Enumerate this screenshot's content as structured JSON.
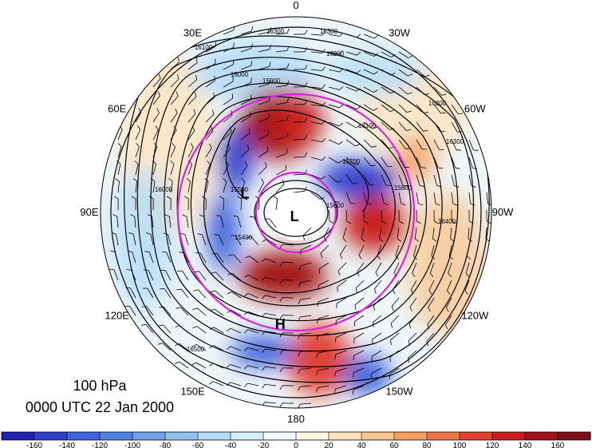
{
  "caption": {
    "level": "100 hPa",
    "time": "0000 UTC 22 Jan 2000"
  },
  "longitude_labels": [
    {
      "text": "0",
      "lon": 0
    },
    {
      "text": "30W",
      "lon": -30
    },
    {
      "text": "60W",
      "lon": -60
    },
    {
      "text": "90W",
      "lon": -90
    },
    {
      "text": "120W",
      "lon": -120
    },
    {
      "text": "150W",
      "lon": -150
    },
    {
      "text": "180",
      "lon": 180
    },
    {
      "text": "150E",
      "lon": 150
    },
    {
      "text": "120E",
      "lon": 120
    },
    {
      "text": "90E",
      "lon": 90
    },
    {
      "text": "60E",
      "lon": 60
    },
    {
      "text": "30E",
      "lon": 30
    }
  ],
  "pressure_centers": [
    {
      "text": "L",
      "lat": 88,
      "lon": 160
    },
    {
      "text": "L",
      "lat": 65,
      "lon": 70
    },
    {
      "text": "H",
      "lat": 38,
      "lon": 172
    }
  ],
  "contour_labels": [
    "16300",
    "16300",
    "16200",
    "16100",
    "16000",
    "15900",
    "16100",
    "15800",
    "16200",
    "16000",
    "15700",
    "15600",
    "15500",
    "15400",
    "16300",
    "16400",
    "16500"
  ],
  "colorbar": {
    "ticks": [
      -160,
      -140,
      -120,
      -100,
      -80,
      -60,
      -40,
      -20,
      0,
      20,
      40,
      60,
      80,
      100,
      120,
      140,
      160
    ],
    "colors": [
      "#1f1fb5",
      "#2f40cc",
      "#3c63dc",
      "#4f83e3",
      "#6ea3ea",
      "#8fc1f1",
      "#b3dcf7",
      "#d6f0fb",
      "#f2fbff",
      "#fff7df",
      "#fde3bd",
      "#f9c590",
      "#f4a163",
      "#ec7445",
      "#e04430",
      "#c9201f",
      "#a41219",
      "#7c0d14"
    ]
  },
  "colors": {
    "reference_circle": "#e020e0",
    "contour": "#000000"
  }
}
